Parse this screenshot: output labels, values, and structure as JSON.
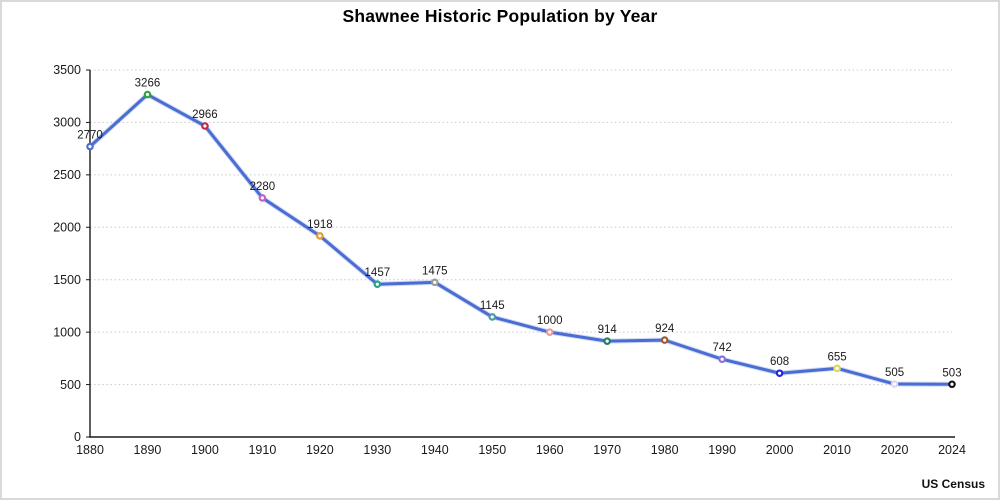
{
  "chart_data": {
    "type": "line",
    "title": "Shawnee Historic Population by Year",
    "source": "US Census",
    "xlabel": "",
    "ylabel": "",
    "categories": [
      "1880",
      "1890",
      "1900",
      "1910",
      "1920",
      "1930",
      "1940",
      "1950",
      "1960",
      "1970",
      "1980",
      "1990",
      "2000",
      "2010",
      "2020",
      "2024"
    ],
    "values": [
      2770,
      3266,
      2966,
      2280,
      1918,
      1457,
      1475,
      1145,
      1000,
      914,
      924,
      742,
      608,
      655,
      505,
      503
    ],
    "data_labels": [
      "2770",
      "3266",
      "2966",
      "2280",
      "1918",
      "1457",
      "1475",
      "1145",
      "1000",
      "914",
      "924",
      "742",
      "608",
      "655",
      "505",
      "503"
    ],
    "ylim": [
      0,
      3500
    ],
    "yticks": [
      0,
      500,
      1000,
      1500,
      2000,
      2500,
      3000,
      3500
    ],
    "grid": "horizontal dotted",
    "legend_position": "none",
    "line_color": "#4a6dd4",
    "marker_fill": "#ffffff",
    "marker_colors": [
      "#4a6dd4",
      "#2fa43c",
      "#c02940",
      "#c361c7",
      "#e49b27",
      "#27a186",
      "#9b9b9b",
      "#4f97a3",
      "#e59aa2",
      "#1e7d5e",
      "#a05a2a",
      "#8b6fd6",
      "#2323d9",
      "#e0d860",
      "#dcdce8",
      "#141414"
    ],
    "axis_color": "#1a1a1a",
    "grid_color": "#c9c9c9",
    "label_color": "#1a1a1a",
    "background_color": "#ffffff",
    "border_color": "#d9d9d9"
  }
}
